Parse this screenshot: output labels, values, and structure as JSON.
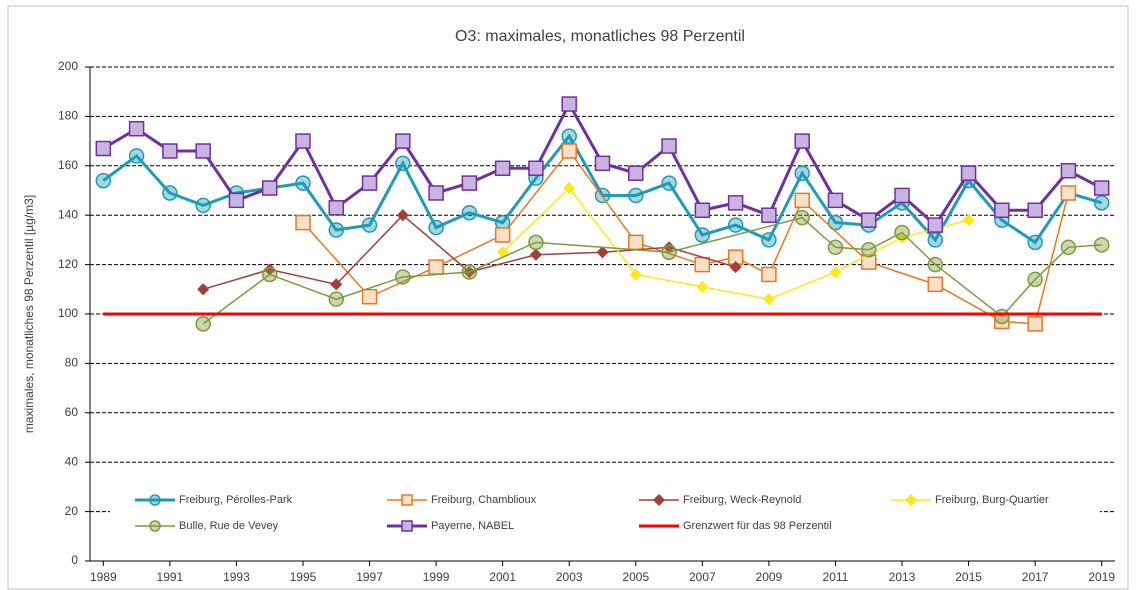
{
  "chart_data": {
    "type": "line",
    "title": "O3: maximales, monatliches 98 Perzentil",
    "y_label": "maximales, monatliches 98 Perzentil  [µg/m3]",
    "xlim": [
      1988.6,
      2019.4
    ],
    "xticks": [
      1989,
      1991,
      1993,
      1995,
      1997,
      1999,
      2001,
      2003,
      2005,
      2007,
      2009,
      2011,
      2013,
      2015,
      2017,
      2019
    ],
    "ylim": [
      0,
      200
    ],
    "yticks": [
      0,
      20,
      40,
      60,
      80,
      100,
      120,
      140,
      160,
      180,
      200
    ],
    "grid": true,
    "series": [
      {
        "name": "Freiburg, Pérolles-Park",
        "color": "#1f9bb5",
        "marker": "circle",
        "line_width": 3,
        "x": [
          1989,
          1990,
          1991,
          1992,
          1993,
          1994,
          1995,
          1996,
          1997,
          1998,
          1999,
          2000,
          2001,
          2002,
          2003,
          2004,
          2005,
          2006,
          2007,
          2008,
          2009,
          2010,
          2011,
          2012,
          2013,
          2014,
          2015,
          2016,
          2017,
          2018,
          2019
        ],
        "values": [
          154,
          164,
          149,
          144,
          149,
          151,
          153,
          134,
          136,
          161,
          135,
          141,
          137,
          155,
          172,
          148,
          148,
          153,
          132,
          136,
          130,
          157,
          137,
          136,
          145,
          130,
          154,
          138,
          129,
          149,
          145
        ]
      },
      {
        "name": "Freiburg, Chamblioux",
        "color": "#e87722",
        "marker": "square",
        "line_width": 1.5,
        "x": [
          1995,
          1997,
          1999,
          2001,
          2003,
          2005,
          2007,
          2008,
          2009,
          2010,
          2012,
          2014,
          2016,
          2017,
          2018
        ],
        "values": [
          137,
          107,
          119,
          132,
          166,
          129,
          120,
          123,
          116,
          146,
          121,
          112,
          97,
          96,
          149
        ]
      },
      {
        "name": "Freiburg, Weck-Reynold",
        "color": "#a0403a",
        "marker": "diamond",
        "line_width": 1.5,
        "x": [
          1992,
          1994,
          1996,
          1998,
          2000,
          2002,
          2004,
          2006,
          2008
        ],
        "values": [
          110,
          118,
          112,
          140,
          117,
          124,
          125,
          127,
          119
        ]
      },
      {
        "name": "Freiburg, Burg-Quartier",
        "color": "#ffe81a",
        "marker": "diamond",
        "line_width": 1.5,
        "x": [
          2001,
          2003,
          2005,
          2007,
          2009,
          2011,
          2013,
          2015
        ],
        "values": [
          125,
          151,
          116,
          111,
          106,
          117,
          131,
          138
        ]
      },
      {
        "name": "Bulle, Rue de Vevey",
        "color": "#7f9a3c",
        "marker": "circle",
        "line_width": 1.5,
        "x": [
          1992,
          1994,
          1996,
          1998,
          2000,
          2002,
          2006,
          2010,
          2011,
          2012,
          2013,
          2014,
          2016,
          2017,
          2018,
          2019
        ],
        "values": [
          96,
          116,
          106,
          115,
          117,
          129,
          125,
          139,
          127,
          126,
          133,
          120,
          99,
          114,
          127,
          128
        ]
      },
      {
        "name": "Payerne, NABEL",
        "color": "#7030a0",
        "marker": "square",
        "line_width": 3,
        "x": [
          1989,
          1990,
          1991,
          1992,
          1993,
          1994,
          1995,
          1996,
          1997,
          1998,
          1999,
          2000,
          2001,
          2002,
          2003,
          2004,
          2005,
          2006,
          2007,
          2008,
          2009,
          2010,
          2011,
          2012,
          2013,
          2014,
          2015,
          2016,
          2017,
          2018,
          2019
        ],
        "values": [
          167,
          175,
          166,
          166,
          146,
          151,
          170,
          143,
          153,
          170,
          149,
          153,
          159,
          159,
          185,
          161,
          157,
          168,
          142,
          145,
          140,
          170,
          146,
          138,
          148,
          136,
          157,
          142,
          142,
          158,
          151
        ]
      },
      {
        "name": "Grenzwert für das 98 Perzentil",
        "color": "#ff0000",
        "marker": "none",
        "line_width": 3,
        "x": [
          1989,
          2019
        ],
        "values": [
          100,
          100
        ]
      }
    ]
  }
}
